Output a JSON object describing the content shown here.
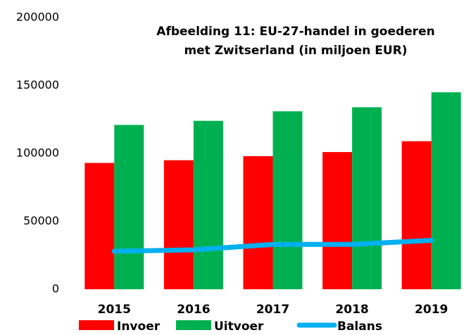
{
  "chart_data": {
    "type": "bar",
    "title": [
      "Afbeelding 11: EU-27-handel in goederen",
      "met Zwitserland (in miljoen EUR)"
    ],
    "categories": [
      "2015",
      "2016",
      "2017",
      "2018",
      "2019"
    ],
    "series": [
      {
        "name": "Invoer",
        "color": "#ff0000",
        "type": "bar",
        "values": [
          93000,
          95000,
          98000,
          101000,
          109000
        ]
      },
      {
        "name": "Uitvoer",
        "color": "#00b050",
        "type": "bar",
        "values": [
          121000,
          124000,
          131000,
          134000,
          145000
        ]
      },
      {
        "name": "Balans",
        "color": "#00b0f0",
        "type": "line",
        "values": [
          28000,
          29000,
          33000,
          33000,
          36000
        ]
      }
    ],
    "ylim": [
      0,
      200000
    ],
    "yticks": [
      0,
      50000,
      100000,
      150000,
      200000
    ],
    "grid": false
  }
}
